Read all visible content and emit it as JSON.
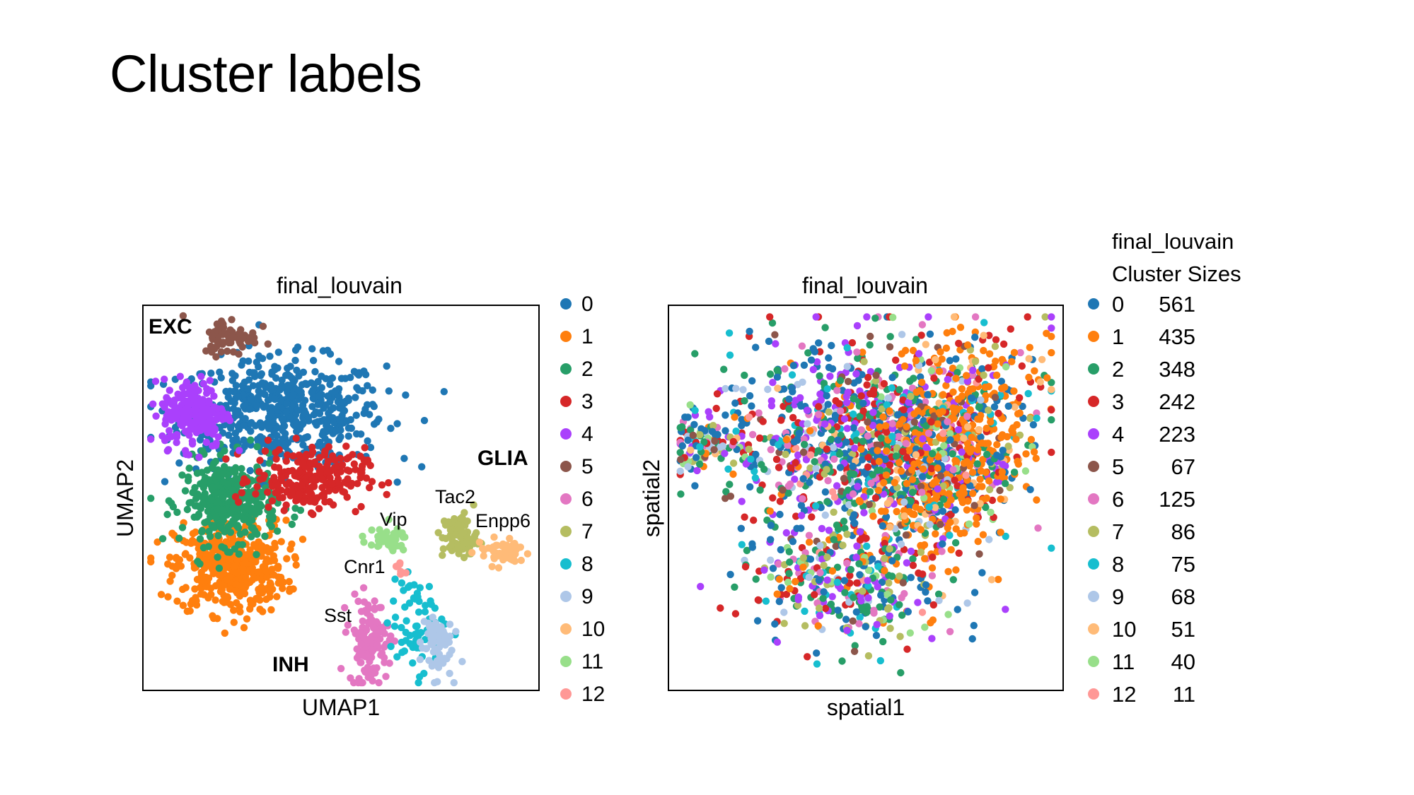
{
  "slide": {
    "title": "Cluster labels"
  },
  "colors": [
    "#1f77b4",
    "#ff7f0e",
    "#279e68",
    "#d62728",
    "#aa40fc",
    "#8c564b",
    "#e377c2",
    "#b5bd61",
    "#17becf",
    "#aec7e8",
    "#ffbb78",
    "#98df8a",
    "#ff9896"
  ],
  "chart_data": [
    {
      "type": "scatter",
      "title": "final_louvain",
      "xlabel": "UMAP1",
      "ylabel": "UMAP2",
      "grid": false,
      "legend_placement": "right",
      "legend": [
        "0",
        "1",
        "2",
        "3",
        "4",
        "5",
        "6",
        "7",
        "8",
        "9",
        "10",
        "11",
        "12"
      ],
      "region_labels": [
        "EXC",
        "GLIA",
        "INH"
      ],
      "annotations": [
        "Tac2",
        "Vip",
        "Enpp6",
        "Cnr1",
        "Sst"
      ],
      "series": [
        {
          "name": "0",
          "cx": 0.35,
          "cy": 0.72,
          "sx": 0.13,
          "sy": 0.07,
          "n": 560
        },
        {
          "name": "1",
          "cx": 0.22,
          "cy": 0.32,
          "sx": 0.07,
          "sy": 0.06,
          "n": 430
        },
        {
          "name": "2",
          "cx": 0.22,
          "cy": 0.49,
          "sx": 0.06,
          "sy": 0.055,
          "n": 350
        },
        {
          "name": "3",
          "cx": 0.42,
          "cy": 0.55,
          "sx": 0.07,
          "sy": 0.04,
          "n": 240
        },
        {
          "name": "4",
          "cx": 0.13,
          "cy": 0.72,
          "sx": 0.04,
          "sy": 0.045,
          "n": 220
        },
        {
          "name": "5",
          "cx": 0.22,
          "cy": 0.92,
          "sx": 0.035,
          "sy": 0.025,
          "n": 70
        },
        {
          "name": "6",
          "cx": 0.57,
          "cy": 0.13,
          "sx": 0.025,
          "sy": 0.055,
          "n": 125
        },
        {
          "name": "7",
          "cx": 0.8,
          "cy": 0.4,
          "sx": 0.022,
          "sy": 0.03,
          "n": 86
        },
        {
          "name": "8",
          "cx": 0.69,
          "cy": 0.17,
          "sx": 0.035,
          "sy": 0.06,
          "n": 75
        },
        {
          "name": "9",
          "cx": 0.74,
          "cy": 0.12,
          "sx": 0.02,
          "sy": 0.045,
          "n": 68
        },
        {
          "name": "10",
          "cx": 0.91,
          "cy": 0.36,
          "sx": 0.035,
          "sy": 0.018,
          "n": 51
        },
        {
          "name": "11",
          "cx": 0.61,
          "cy": 0.39,
          "sx": 0.03,
          "sy": 0.015,
          "n": 40
        },
        {
          "name": "12",
          "cx": 0.65,
          "cy": 0.32,
          "sx": 0.006,
          "sy": 0.018,
          "n": 11
        }
      ]
    },
    {
      "type": "scatter",
      "title": "final_louvain",
      "xlabel": "spatial1",
      "ylabel": "spatial2",
      "grid": false,
      "legend_placement": "right",
      "legend_title": [
        "final_louvain",
        "Cluster Sizes"
      ],
      "legend": [
        {
          "label": "0",
          "size": 561
        },
        {
          "label": "1",
          "size": 435
        },
        {
          "label": "2",
          "size": 348
        },
        {
          "label": "3",
          "size": 242
        },
        {
          "label": "4",
          "size": 223
        },
        {
          "label": "5",
          "size": 67
        },
        {
          "label": "6",
          "size": 125
        },
        {
          "label": "7",
          "size": 86
        },
        {
          "label": "8",
          "size": 75
        },
        {
          "label": "9",
          "size": 68
        },
        {
          "label": "10",
          "size": 51
        },
        {
          "label": "11",
          "size": 40
        },
        {
          "label": "12",
          "size": 11
        }
      ]
    }
  ]
}
